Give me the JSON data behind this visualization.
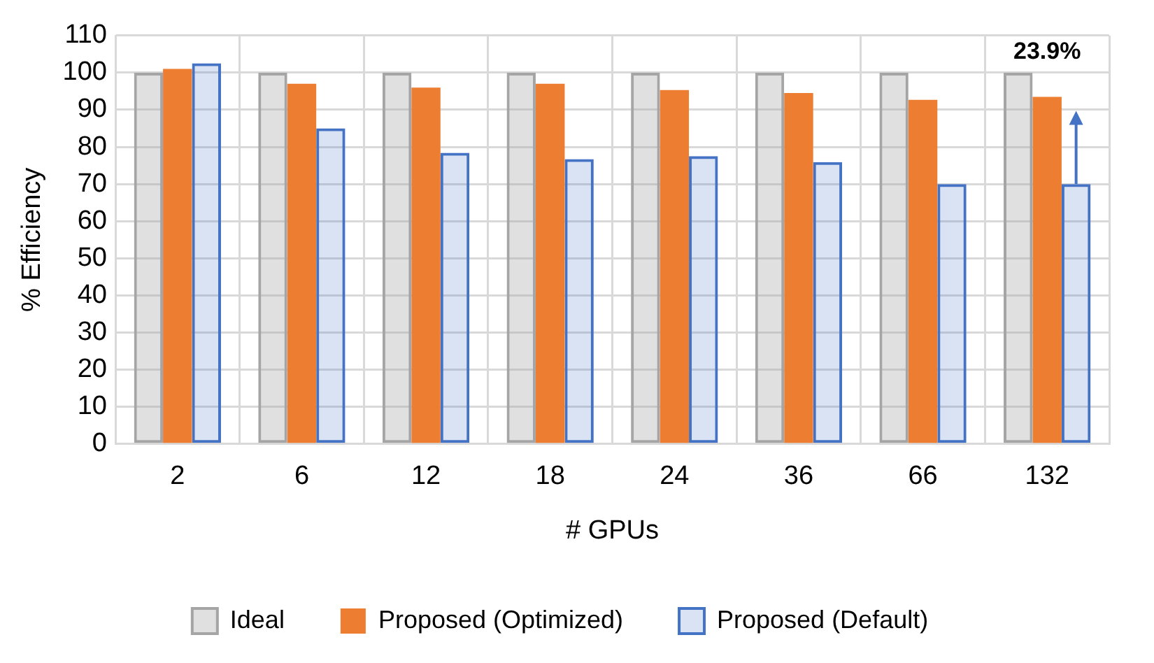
{
  "chart_data": {
    "type": "bar",
    "xlabel": "# GPUs",
    "ylabel": "% Efficiency",
    "categories": [
      "2",
      "6",
      "12",
      "18",
      "24",
      "36",
      "66",
      "132"
    ],
    "series": [
      {
        "name": "Ideal",
        "color": "#a5a5a5",
        "values": [
          100,
          100,
          100,
          100,
          100,
          100,
          100,
          100
        ]
      },
      {
        "name": "Proposed (Optimized)",
        "color": "#ed7d31",
        "values": [
          101,
          97,
          96,
          97,
          95.3,
          94.5,
          92.7,
          93.5
        ]
      },
      {
        "name": "Proposed (Default)",
        "color": "#4472c4",
        "values": [
          102.5,
          85,
          78.4,
          76.7,
          77.5,
          75.9,
          70,
          70
        ]
      }
    ],
    "ylim": [
      0,
      110
    ],
    "yticks": [
      0,
      10,
      20,
      30,
      40,
      50,
      60,
      70,
      80,
      90,
      100,
      110
    ],
    "grid": true,
    "legend": "bottom",
    "annotations": [
      "23.9%"
    ]
  }
}
